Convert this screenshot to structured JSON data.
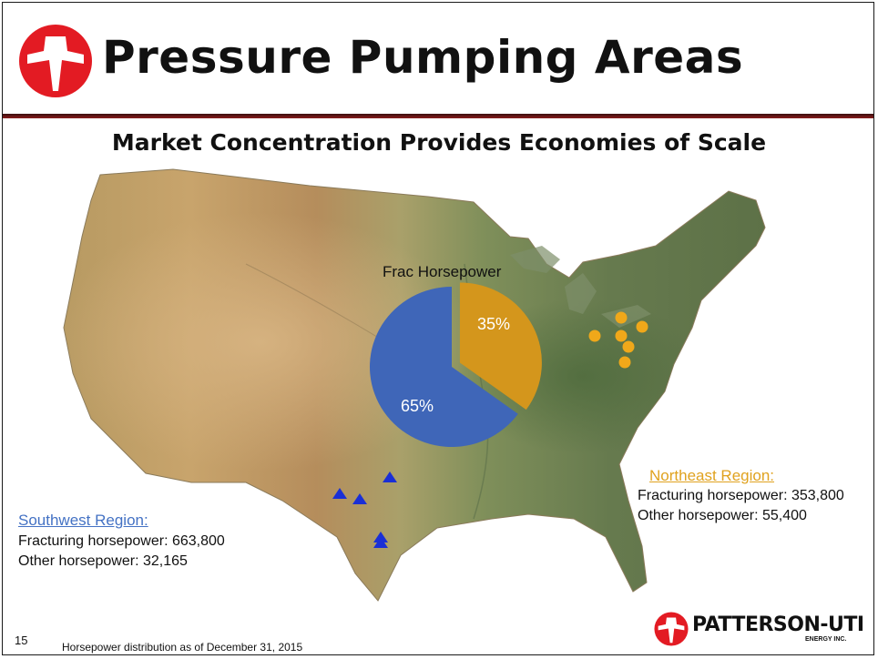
{
  "slide": {
    "title": "Pressure Pumping Areas",
    "subtitle": "Market Concentration Provides Economies of Scale",
    "number": "15",
    "footnote": "Horsepower distribution as of December 31, 2015"
  },
  "colors": {
    "brand_red": "#e31b23",
    "title_rule": "#8a1b1b",
    "pie_blue": "#3f66b8",
    "pie_orange": "#d4961c",
    "southwest_link": "#4472c4",
    "northeast_link": "#e0a21f",
    "marker_triangle": "#1a2fd6",
    "marker_circle": "#f0a81a"
  },
  "pie": {
    "title": "Frac Horsepower",
    "slices": [
      {
        "label": "35%",
        "value": 35,
        "color": "#d4961c"
      },
      {
        "label": "65%",
        "value": 65,
        "color": "#3f66b8"
      }
    ]
  },
  "regions": {
    "southwest": {
      "heading": "Southwest Region:",
      "lines": [
        "Fracturing horsepower: 663,800",
        "Other horsepower: 32,165"
      ]
    },
    "northeast": {
      "heading": "Northeast Region:",
      "lines": [
        "Fracturing horsepower: 353,800",
        "Other horsepower: 55,400"
      ]
    }
  },
  "markers": {
    "southwest_shape": "triangle",
    "northeast_shape": "circle"
  },
  "footer_logo": {
    "name": "PATTERSON-UTI",
    "sub": "ENERGY INC."
  }
}
